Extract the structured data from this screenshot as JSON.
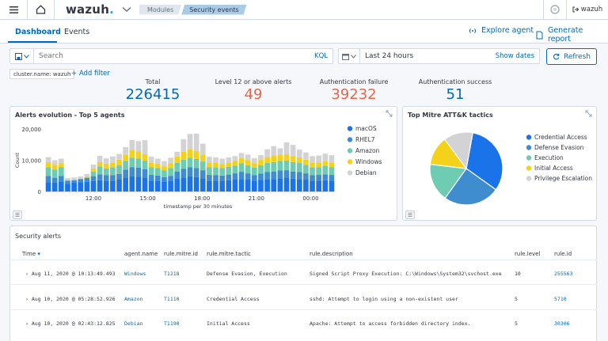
{
  "app": {
    "logo": "wazuh",
    "user": "wazuh"
  },
  "breadcrumb": [
    "Modules",
    "Security events"
  ],
  "tabs": [
    "Dashboard",
    "Events"
  ],
  "header_actions": {
    "explore": "Explore agent",
    "report": "Generate report"
  },
  "search": {
    "placeholder": "Search",
    "lang": "KQL"
  },
  "timepicker": {
    "value": "Last 24 hours",
    "show_dates": "Show dates"
  },
  "refresh_label": "Refresh",
  "filter_chip": "cluster.name: wazuh",
  "add_filter": "+ Add filter",
  "stats": [
    {
      "label": "Total",
      "value": "226415",
      "color": "#006bb4"
    },
    {
      "label": "Level 12 or above alerts",
      "value": "49",
      "color": "#bd271e"
    },
    {
      "label": "Authentication failure",
      "value": "39232",
      "color": "#bd271e"
    },
    {
      "label": "Authentication success",
      "value": "51",
      "color": "#006bb4"
    }
  ],
  "alerts_panel": {
    "title": "Alerts evolution - Top 5 agents"
  },
  "mitre_panel": {
    "title": "Top Mitre ATT&K tactics"
  },
  "chart_data": [
    {
      "type": "bar",
      "title": "Alerts evolution - Top 5 agents",
      "xlabel": "timestamp per 30 minutes",
      "ylabel": "Count",
      "ylim": [
        0,
        20000
      ],
      "yticks": [
        "0",
        "10,000",
        "20,000"
      ],
      "xticks": [
        "12:00",
        "15:00",
        "18:00",
        "21:00",
        "00:00"
      ],
      "stacked": true,
      "legend_position": "right",
      "series": [
        {
          "name": "macOS",
          "color": "#1a73e8",
          "values": [
            3000,
            2800,
            3200,
            2500,
            2800,
            3000,
            3100,
            3300,
            3600,
            3400,
            3500,
            3800,
            4500,
            4800,
            4700,
            4300,
            3500,
            3400,
            3200,
            3400,
            4200,
            4500,
            4800,
            4600,
            4200,
            3500,
            3500,
            3400,
            3600,
            3800,
            4000,
            3800,
            3400,
            3700,
            3900,
            4000,
            4200,
            4300,
            4100,
            3900,
            3800,
            3400,
            3500,
            3600,
            3500
          ]
        },
        {
          "name": "RHEL7",
          "color": "#3f8ccf",
          "values": [
            2000,
            1600,
            1800,
            1000,
            800,
            1000,
            1300,
            1600,
            1900,
            1800,
            1700,
            1800,
            2500,
            3000,
            2900,
            2800,
            1800,
            1700,
            1400,
            1600,
            2200,
            2800,
            3000,
            2900,
            2600,
            1800,
            1700,
            1700,
            1800,
            2000,
            2300,
            2000,
            1800,
            2000,
            2300,
            2400,
            2500,
            2500,
            2300,
            2300,
            2000,
            1800,
            1800,
            1900,
            1800
          ]
        },
        {
          "name": "Amazon",
          "color": "#6dccb1",
          "values": [
            2800,
            2600,
            2800,
            0,
            0,
            0,
            0,
            1500,
            2500,
            2200,
            2500,
            2800,
            2800,
            3000,
            2900,
            2800,
            2500,
            2400,
            2200,
            2500,
            2800,
            2900,
            3000,
            2900,
            2800,
            2500,
            2500,
            2400,
            2500,
            2500,
            2700,
            2600,
            2400,
            2700,
            2900,
            3000,
            3100,
            3100,
            3000,
            2900,
            2700,
            2500,
            2500,
            2600,
            2500
          ]
        },
        {
          "name": "Windows",
          "color": "#f5d21a",
          "values": [
            1600,
            1500,
            1200,
            200,
            200,
            200,
            300,
            1000,
            1400,
            1500,
            1500,
            1800,
            1900,
            2500,
            2300,
            2000,
            1500,
            1400,
            1200,
            1500,
            2000,
            2500,
            2800,
            2600,
            2200,
            1500,
            1500,
            1300,
            1400,
            1600,
            1700,
            1600,
            1400,
            1700,
            1900,
            2100,
            2000,
            2000,
            1900,
            1800,
            1700,
            1500,
            1500,
            1600,
            1500
          ]
        },
        {
          "name": "Debian",
          "color": "#d3d3d6",
          "values": [
            1600,
            1500,
            1500,
            600,
            700,
            600,
            900,
            1200,
            2000,
            1700,
            2000,
            1800,
            2500,
            3200,
            3300,
            4500,
            1800,
            1600,
            1700,
            1800,
            1500,
            4000,
            4800,
            5500,
            3500,
            1800,
            1700,
            1700,
            1600,
            1400,
            1600,
            1800,
            1600,
            1500,
            2500,
            3000,
            2000,
            3800,
            3600,
            2500,
            2300,
            2100,
            2200,
            2400,
            2300
          ]
        }
      ]
    },
    {
      "type": "pie",
      "title": "Top Mitre ATT&K tactics",
      "legend_position": "right",
      "categories": [
        "Credential Access",
        "Defense Evasion",
        "Execution",
        "Initial Access",
        "Privilege Escalation"
      ],
      "values": [
        32,
        25,
        17,
        13,
        13
      ],
      "colors": [
        "#1a73e8",
        "#3f8ccf",
        "#6dccb1",
        "#f5d21a",
        "#d3d3d6"
      ]
    }
  ],
  "table": {
    "title": "Security alerts",
    "columns": [
      "Time",
      "agent.name",
      "rule.mitre.id",
      "rule.mitre.tactic",
      "rule.description",
      "rule.level",
      "rule.id"
    ],
    "rows": [
      [
        "Aug 11, 2020 @ 10:13:49.493",
        "Windows",
        "T1218",
        "Defense Evasion, Execution",
        "Signed Script Proxy Execution: C:\\Windows\\System32\\svchost.exe",
        "10",
        "255563"
      ],
      [
        "Aug 10, 2020 @ 05:28:52.926",
        "Amazon",
        "T1110",
        "Credential Access",
        "sshd: Attempt to login using a non-existent user",
        "5",
        "5710"
      ],
      [
        "Aug 10, 2020 @ 02:43:12.825",
        "Debian",
        "T1190",
        "Initial Access",
        "Apache: Attempt to access forbidden directory index.",
        "5",
        "30306"
      ]
    ]
  }
}
